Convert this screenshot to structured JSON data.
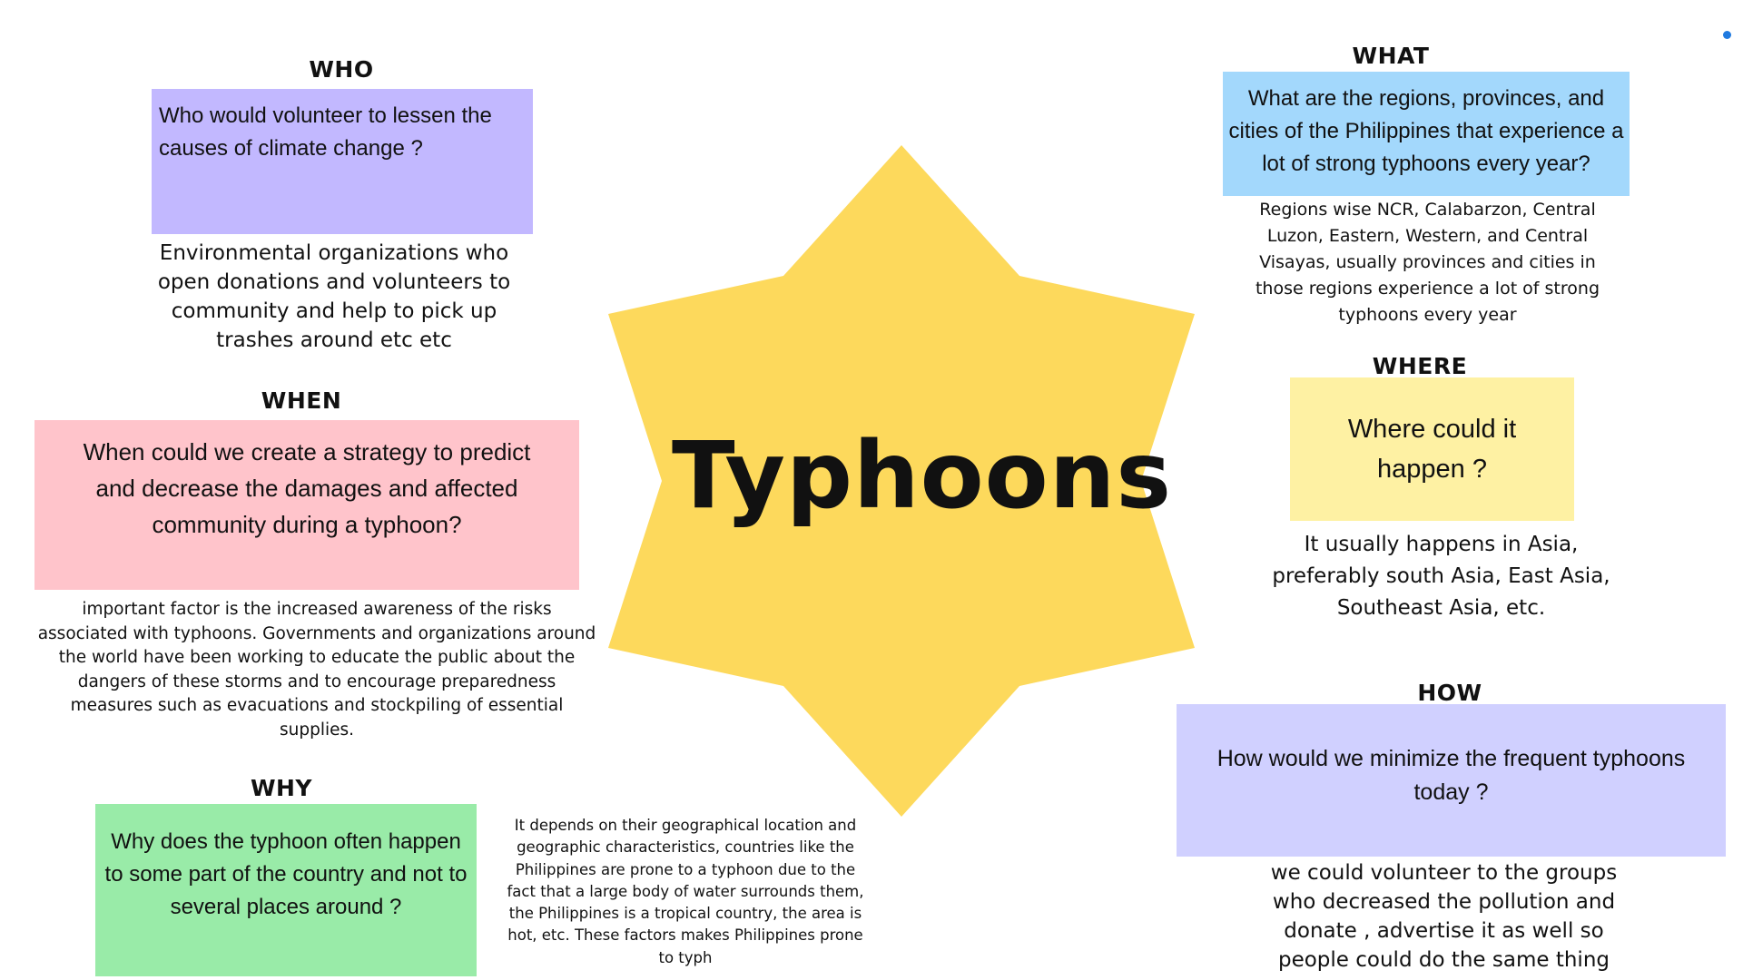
{
  "title": "Typhoons",
  "colors": {
    "star": "#fdd95c",
    "who_box": "#c2b8ff",
    "when_box": "#ffc4cb",
    "why_box": "#99eba8",
    "what_box": "#a3d8fc",
    "where_box": "#fef1a3",
    "how_box": "#d0d0ff",
    "marker_dot": "#1f7ae0"
  },
  "who": {
    "heading": "WHO",
    "question": "Who would volunteer to lessen the causes of climate change ?",
    "answer": "Environmental organizations who open donations and volunteers to community and help to pick up trashes around etc etc"
  },
  "when": {
    "heading": "WHEN",
    "question": "When could we create a strategy to predict and decrease the damages and affected community during a typhoon?",
    "answer": "important factor is the increased awareness of the risks associated with typhoons. Governments and organizations around the world have been working to educate the public about the dangers of these storms and to encourage preparedness measures such as evacuations and stockpiling of essential supplies."
  },
  "why": {
    "heading": "WHY",
    "question": "Why does the typhoon  often happen to some part of the country and not to several places around ?",
    "answer": "It depends on their geographical location and geographic characteristics, countries like the Philippines are prone to a typhoon due to the fact that a large body of water surrounds them, the Philippines is a tropical country, the area is hot, etc. These factors makes Philippines prone to typh"
  },
  "what": {
    "heading": "WHAT",
    "question": "What are the regions, provinces, and cities of the Philippines that experience a lot of strong typhoons every year?",
    "answer": "Regions wise NCR, Calabarzon, Central Luzon, Eastern, Western, and Central Visayas, usually provinces and cities in those regions experience a lot of strong typhoons every year"
  },
  "where": {
    "heading": "WHERE",
    "question": "Where could it happen ?",
    "answer": "It usually happens in Asia, preferably south Asia, East Asia, Southeast Asia, etc."
  },
  "how": {
    "heading": "HOW",
    "question": "How would we minimize the frequent typhoons today ?",
    "answer": "we could volunteer to the groups who decreased the pollution and donate , advertise it as well so people could do the same thing"
  }
}
